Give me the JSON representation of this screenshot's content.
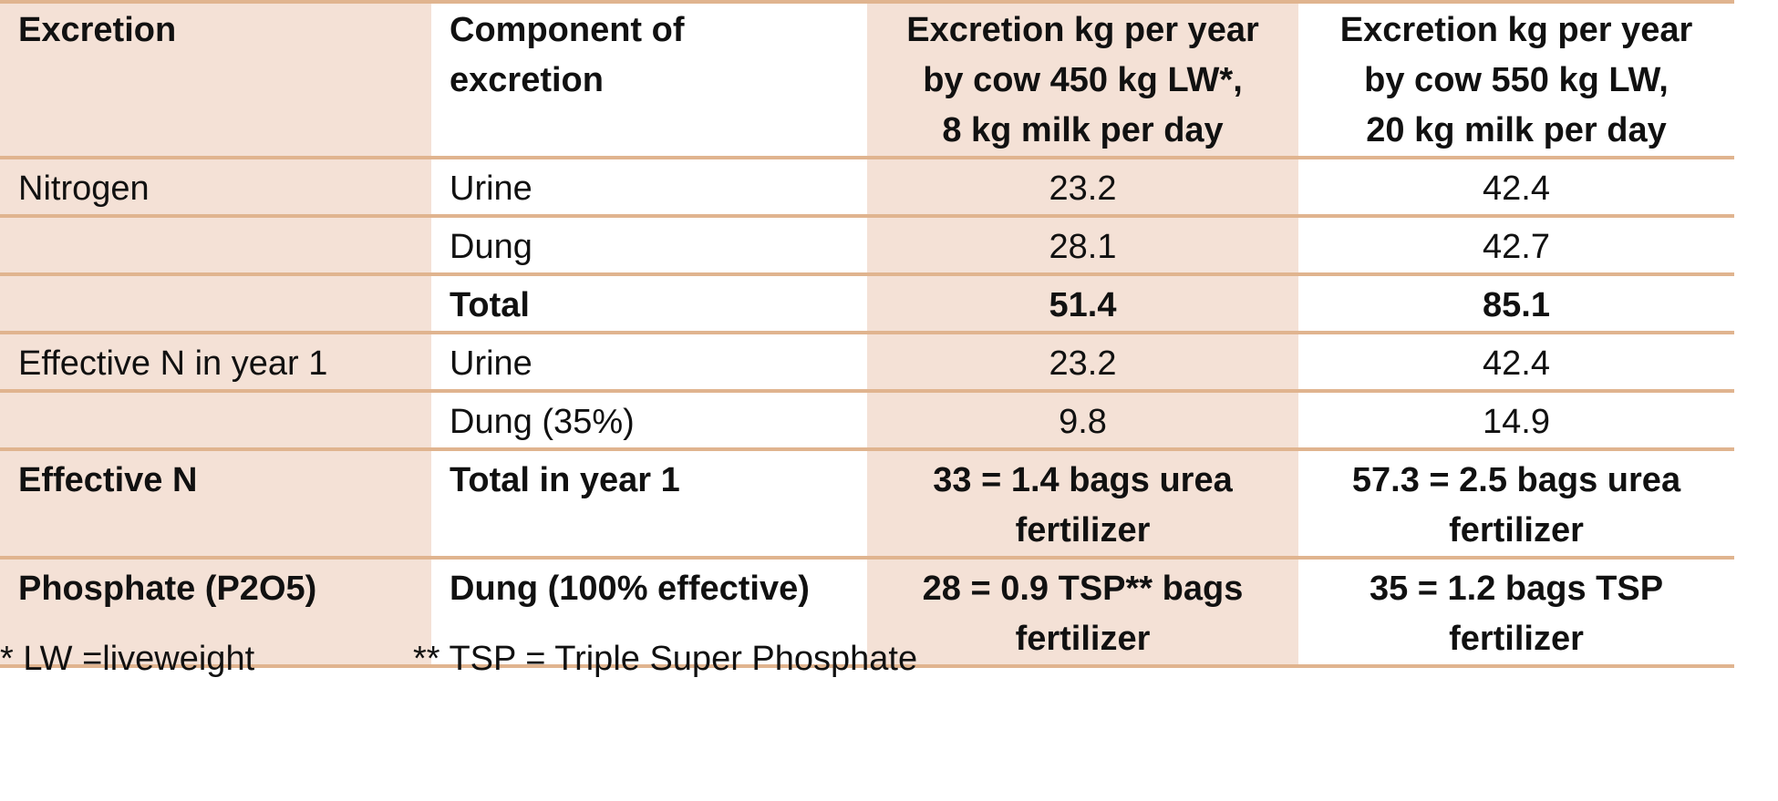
{
  "table": {
    "headers": [
      "Excretion",
      "Component of excretion",
      "Excretion kg per year by cow 450 kg LW*, 8 kg milk per day",
      "Excretion kg per year by cow 550 kg LW, 20 kg milk per day"
    ],
    "header_lines": {
      "col2": [
        "Component of",
        "excretion"
      ],
      "col3": [
        "Excretion kg per year",
        "by cow 450 kg LW*,",
        "8 kg milk per day"
      ],
      "col4": [
        "Excretion kg per year",
        "by cow 550 kg LW,",
        "20 kg milk per day"
      ]
    },
    "rows": [
      {
        "excretion": "Nitrogen",
        "component": "Urine",
        "cow450": "23.2",
        "cow550": "42.4"
      },
      {
        "excretion": "",
        "component": "Dung",
        "cow450": "28.1",
        "cow550": "42.7"
      },
      {
        "excretion": "",
        "component": "Total",
        "cow450": "51.4",
        "cow550": "85.1"
      },
      {
        "excretion": "Effective N in year 1",
        "component": "Urine",
        "cow450": "23.2",
        "cow550": "42.4"
      },
      {
        "excretion": "",
        "component": "Dung (35%)",
        "cow450": "9.8",
        "cow550": "14.9"
      },
      {
        "excretion": "Effective N",
        "component": "Total in year 1",
        "cow450_lines": [
          "33 = 1.4 bags urea",
          "fertilizer"
        ],
        "cow550_lines": [
          "57.3 = 2.5 bags urea",
          "fertilizer"
        ]
      },
      {
        "excretion": "Phosphate (P2O5)",
        "component": "Dung (100% effective)",
        "cow450_lines": [
          "28 = 0.9 TSP** bags",
          "fertilizer"
        ],
        "cow550_lines": [
          "35 = 1.2 bags TSP",
          "fertilizer"
        ]
      }
    ]
  },
  "footnotes": {
    "lw": "* LW =liveweight",
    "tsp": "** TSP = Triple Super Phosphate"
  },
  "colors": {
    "shade": "#f4e1d6",
    "border": "#e0b48f"
  }
}
